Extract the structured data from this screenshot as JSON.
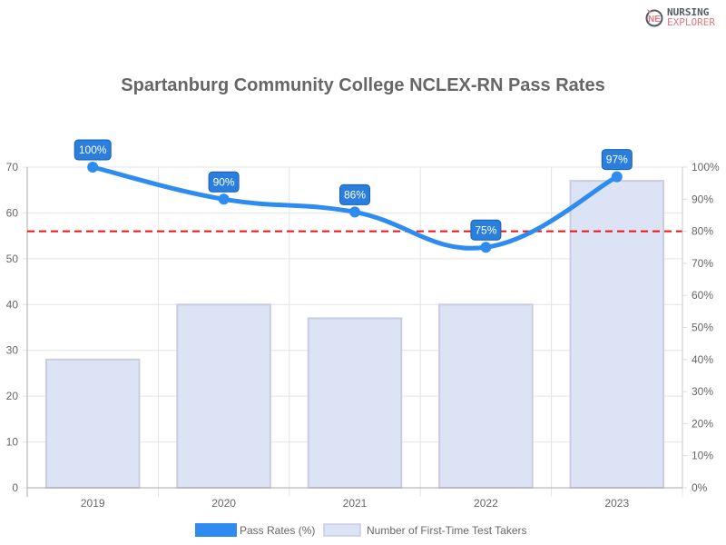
{
  "logo": {
    "line1": "NURSING",
    "line2": "EXPLORER"
  },
  "chart_data": {
    "type": "bar+line",
    "title": "Spartanburg Community College NCLEX-RN Pass Rates",
    "categories": [
      "2019",
      "2020",
      "2021",
      "2022",
      "2023"
    ],
    "series": [
      {
        "name": "Pass Rates (%)",
        "type": "line",
        "axis": "right",
        "values": [
          100,
          90,
          86,
          75,
          97
        ],
        "labels": [
          "100%",
          "90%",
          "86%",
          "75%",
          "97%"
        ],
        "color": "#2e8cf0"
      },
      {
        "name": "Number of First-Time Test Takers",
        "type": "bar",
        "axis": "left",
        "values": [
          28,
          40,
          37,
          40,
          67
        ],
        "color": "#dce3f5"
      }
    ],
    "left_axis": {
      "ylim": [
        0,
        70
      ],
      "ticks": [
        "0",
        "10",
        "20",
        "30",
        "40",
        "50",
        "60",
        "70"
      ]
    },
    "right_axis": {
      "ylim": [
        0,
        100
      ],
      "ticks": [
        "0%",
        "10%",
        "20%",
        "30%",
        "40%",
        "50%",
        "60%",
        "70%",
        "80%",
        "90%",
        "100%"
      ]
    },
    "reference_line": {
      "value": 80,
      "axis": "right",
      "color": "#ee1111",
      "style": "dashed"
    },
    "grid": true,
    "legend": "bottom"
  }
}
